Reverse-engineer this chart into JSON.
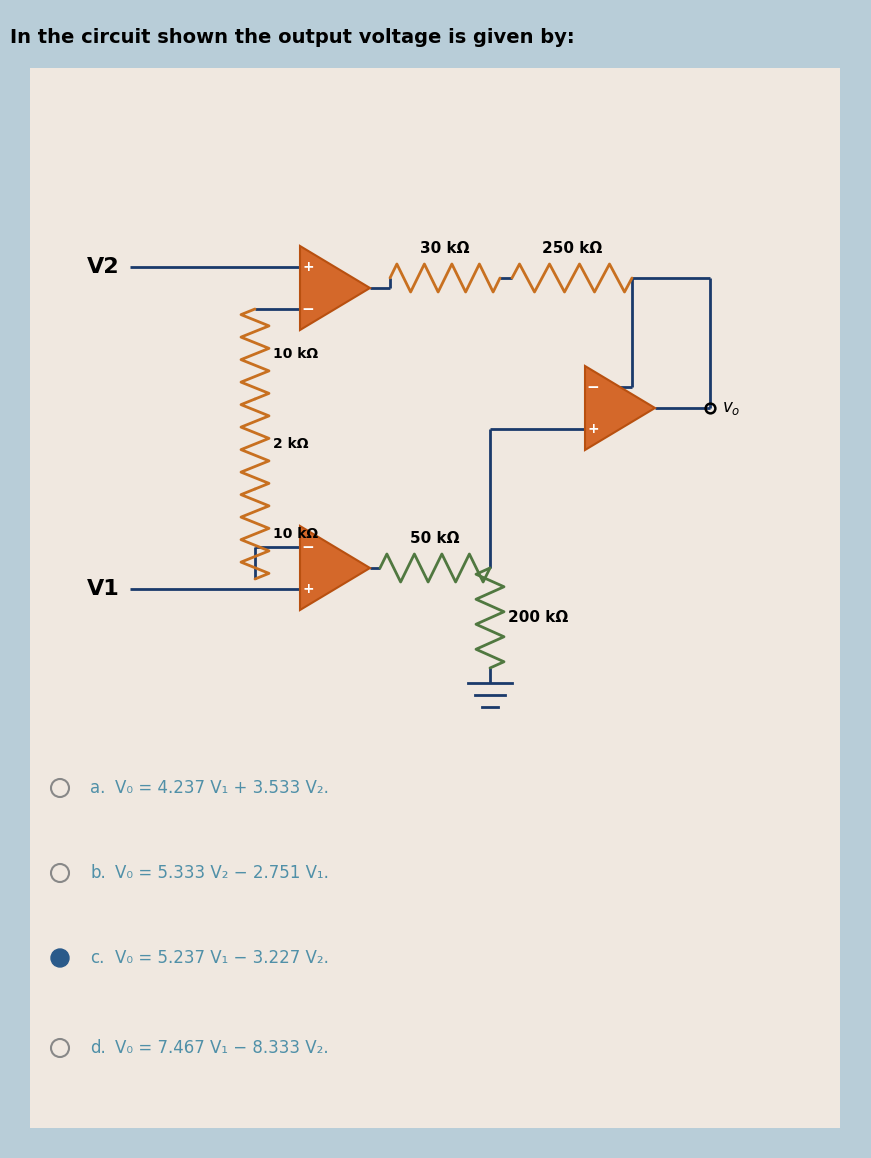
{
  "title": "In the circuit shown the output voltage is given by:",
  "bg_color_outer": "#b8cdd8",
  "bg_color_inner": "#f0e8e0",
  "wire_color": "#1a3a6b",
  "resistor_color_brown": "#c87020",
  "resistor_color_green": "#507840",
  "opamp_fill": "#d4682a",
  "opamp_stroke": "#b85010",
  "text_color": "#000000",
  "answer_color": "#5090a8",
  "dot_fill_color": "#2a5a8a",
  "dot_empty_color": "#888888",
  "selected_choice": 2,
  "choices_label": [
    "a.",
    "b.",
    "c.",
    "d."
  ],
  "choices_text": [
    "V₀ = 4.237 V₁ + 3.533 V₂.",
    "V₀ = 5.333 V₂ − 2.751 V₁.",
    "V₀ = 5.237 V₁ − 3.227 V₂.",
    "V₀ = 7.467 V₁ − 8.333 V₂."
  ]
}
